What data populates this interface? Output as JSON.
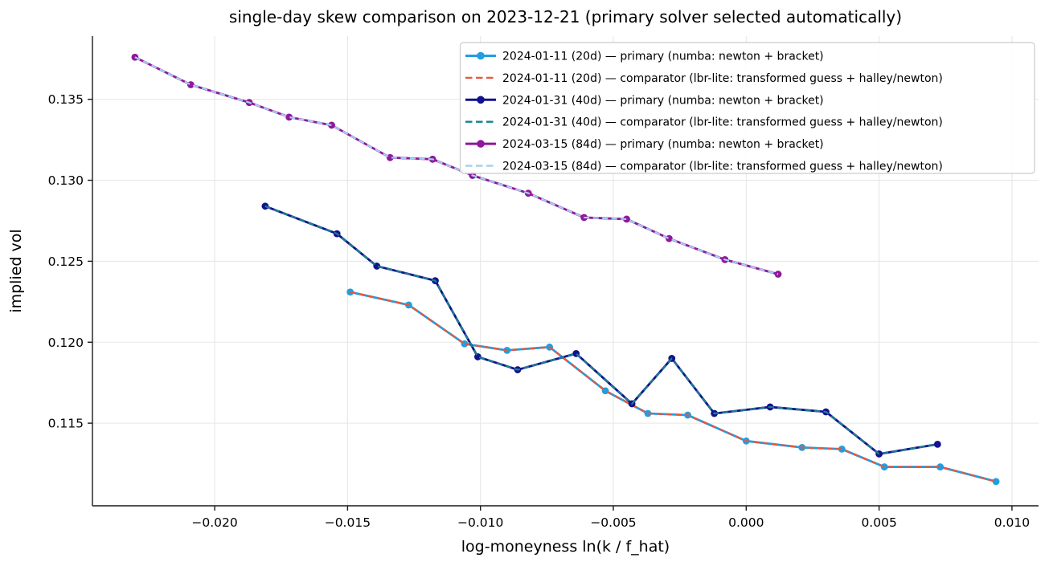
{
  "title": "single-day skew comparison on 2023-12-21 (primary solver selected automatically)",
  "chart_data": {
    "type": "line",
    "title": "single-day skew comparison on 2023-12-21 (primary solver selected automatically)",
    "xlabel": "log-moneyness ln(k / f_hat)",
    "ylabel": "implied vol",
    "xlim": [
      -0.0246,
      0.011
    ],
    "ylim": [
      0.1099,
      0.1389
    ],
    "grid": true,
    "legend_position": "upper right",
    "xticks": [
      -0.02,
      -0.015,
      -0.01,
      -0.005,
      0.0,
      0.005,
      0.01
    ],
    "xtick_labels": [
      "−0.020",
      "−0.015",
      "−0.010",
      "−0.005",
      "0.000",
      "0.005",
      "0.010"
    ],
    "yticks": [
      0.115,
      0.12,
      0.125,
      0.13,
      0.135
    ],
    "ytick_labels": [
      "0.115",
      "0.120",
      "0.125",
      "0.130",
      "0.135"
    ],
    "colors": {
      "grid": "#e7e7e7",
      "spine": "#1a1a1a",
      "legend_border": "#cccccc",
      "series_20d_primary": "#219ee0",
      "series_20d_comparator": "#e8573d",
      "series_40d_primary": "#12128f",
      "series_40d_comparator": "#17808c",
      "series_84d_primary": "#8e189c",
      "series_84d_comparator": "#a6cff0"
    },
    "series": [
      {
        "name": "2024-01-11 (20d) — primary (numba: newton + bracket)",
        "color": "#219ee0",
        "style": "solid",
        "marker": "circle",
        "x": [
          -0.0149,
          -0.0127,
          -0.0106,
          -0.009,
          -0.0074,
          -0.0053,
          -0.0037,
          -0.0022,
          0.0,
          0.0021,
          0.0036,
          0.0052,
          0.0073,
          0.0094
        ],
        "y": [
          0.1231,
          0.1223,
          0.1199,
          0.1195,
          0.1197,
          0.117,
          0.1156,
          0.1155,
          0.1139,
          0.1135,
          0.1134,
          0.1123,
          0.1123,
          0.1114
        ]
      },
      {
        "name": "2024-01-11 (20d) — comparator (lbr-lite: transformed guess + halley/newton)",
        "color": "#e8573d",
        "style": "dashed",
        "marker": "none",
        "x": [
          -0.0149,
          -0.0127,
          -0.0106,
          -0.009,
          -0.0074,
          -0.0053,
          -0.0037,
          -0.0022,
          0.0,
          0.0021,
          0.0036,
          0.0052,
          0.0073,
          0.0094
        ],
        "y": [
          0.1231,
          0.1223,
          0.1199,
          0.1195,
          0.1197,
          0.117,
          0.1156,
          0.1155,
          0.1139,
          0.1135,
          0.1134,
          0.1123,
          0.1123,
          0.1114
        ]
      },
      {
        "name": "2024-01-31 (40d) — primary (numba: newton + bracket)",
        "color": "#12128f",
        "style": "solid",
        "marker": "circle",
        "x": [
          -0.0181,
          -0.0154,
          -0.0139,
          -0.0117,
          -0.0101,
          -0.0086,
          -0.0064,
          -0.0043,
          -0.0028,
          -0.0012,
          0.0009,
          0.003,
          0.005,
          0.0072
        ],
        "y": [
          0.1284,
          0.1267,
          0.1247,
          0.1238,
          0.1191,
          0.1183,
          0.1193,
          0.1162,
          0.119,
          0.1156,
          0.116,
          0.1157,
          0.1131,
          0.1137
        ]
      },
      {
        "name": "2024-01-31 (40d) — comparator (lbr-lite: transformed guess + halley/newton)",
        "color": "#17808c",
        "style": "dashed",
        "marker": "none",
        "x": [
          -0.0181,
          -0.0154,
          -0.0139,
          -0.0117,
          -0.0101,
          -0.0086,
          -0.0064,
          -0.0043,
          -0.0028,
          -0.0012,
          0.0009,
          0.003,
          0.005,
          0.0072
        ],
        "y": [
          0.1284,
          0.1267,
          0.1247,
          0.1238,
          0.1191,
          0.1183,
          0.1193,
          0.1162,
          0.119,
          0.1156,
          0.116,
          0.1157,
          0.1131,
          0.1137
        ]
      },
      {
        "name": "2024-03-15 (84d) — primary (numba: newton + bracket)",
        "color": "#8e189c",
        "style": "solid",
        "marker": "circle",
        "x": [
          -0.023,
          -0.0209,
          -0.0187,
          -0.0172,
          -0.0156,
          -0.0134,
          -0.0118,
          -0.0103,
          -0.0082,
          -0.0061,
          -0.0045,
          -0.0029,
          -0.0008,
          0.0012
        ],
        "y": [
          0.1376,
          0.1359,
          0.1348,
          0.1339,
          0.1334,
          0.1314,
          0.1313,
          0.1303,
          0.1292,
          0.1277,
          0.1276,
          0.1264,
          0.1251,
          0.1242
        ]
      },
      {
        "name": "2024-03-15 (84d) — comparator (lbr-lite: transformed guess + halley/newton)",
        "color": "#a6cff0",
        "style": "dashed",
        "marker": "none",
        "x": [
          -0.023,
          -0.0209,
          -0.0187,
          -0.0172,
          -0.0156,
          -0.0134,
          -0.0118,
          -0.0103,
          -0.0082,
          -0.0061,
          -0.0045,
          -0.0029,
          -0.0008,
          0.0012
        ],
        "y": [
          0.1376,
          0.1359,
          0.1348,
          0.1339,
          0.1334,
          0.1314,
          0.1313,
          0.1303,
          0.1292,
          0.1277,
          0.1276,
          0.1264,
          0.1251,
          0.1242
        ]
      }
    ]
  }
}
